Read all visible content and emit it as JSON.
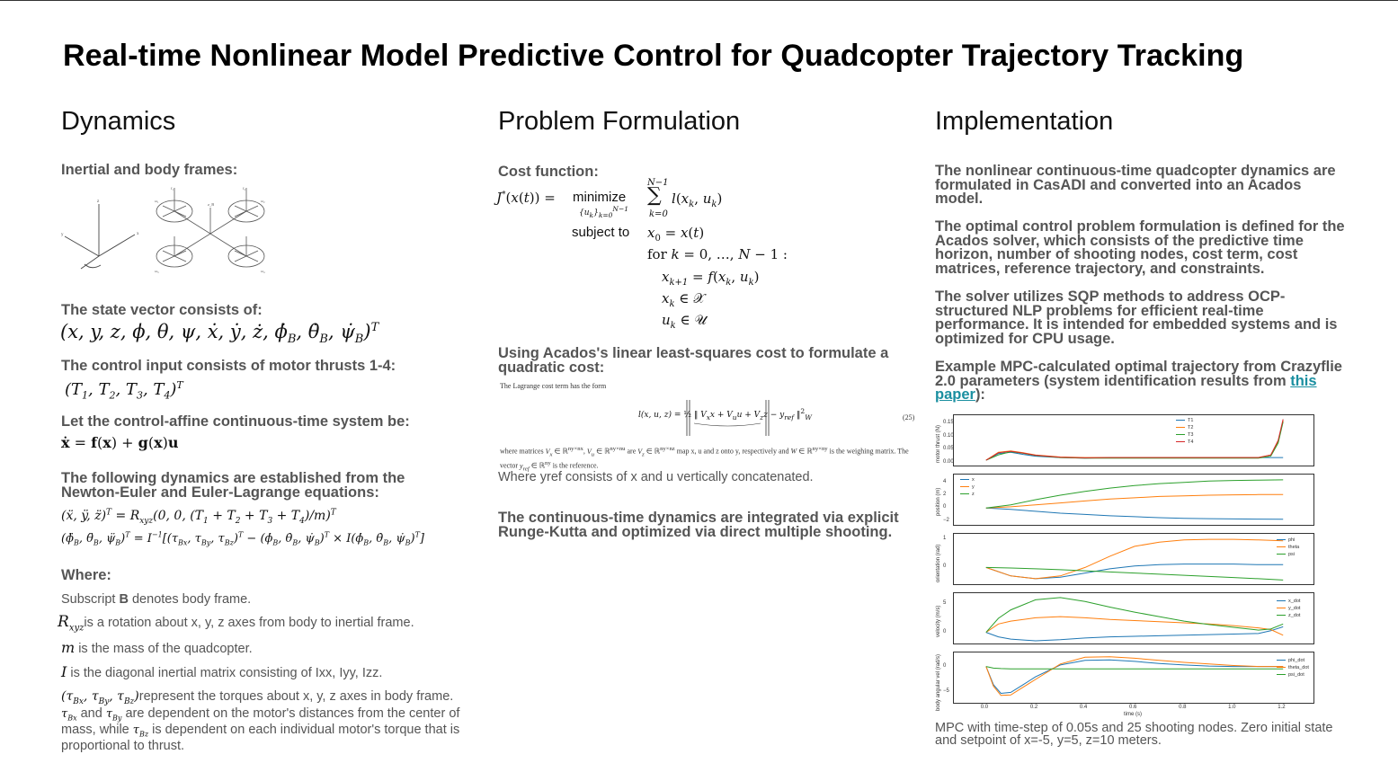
{
  "title": "Real-time Nonlinear Model Predictive Control for Quadcopter Trajectory Tracking",
  "dynamics": {
    "heading": "Dynamics",
    "frames_label": "Inertial and body frames:",
    "state_label": "The state vector consists of:",
    "control_label": "The control input consists of motor thrusts 1-4:",
    "system_label": "Let the control-affine continuous-time system be:",
    "eq_label": "The following dynamics are established from the Newton-Euler and Euler-Lagrange equations:",
    "where_label": "Where:",
    "where_1_pre": "Subscript ",
    "where_1_bold": "B",
    "where_1_post": " denotes body frame.",
    "where_2": "is a rotation about x, y, z axes from body to inertial frame.",
    "where_3": " is the mass of the quadcopter.",
    "where_4": " is the diagonal inertial matrix consisting of Ixx, Iyy, Izz.",
    "where_5a": "represent the torques about x, y, z axes in body frame. ",
    "where_5b": " and ",
    "where_5c": " are dependent on the motor's distances from the center of mass, while ",
    "where_5d": " is dependent on each individual motor's torque that is proportional to thrust."
  },
  "formulation": {
    "heading": "Problem Formulation",
    "cost_label": "Cost function:",
    "minimize": "minimize",
    "subject_to": "subject to",
    "lls_label": "Using Acados's linear least-squares cost to formulate a quadratic cost:",
    "lagrange_text": "The Lagrange cost term has the form",
    "eq_number": "(25)",
    "where_matrices": "where matrices",
    "reference_text": "matrix. The vector",
    "reference_end": "is the reference.",
    "map_text": "map x, u and z onto y, respectively and",
    "weighing_text": "is the weighing",
    "yref_text": "Where yref consists of x and u vertically concatenated.",
    "rk_text": "The continuous-time dynamics are integrated via explicit Runge-Kutta and optimized via direct multiple shooting."
  },
  "implementation": {
    "heading": "Implementation",
    "p1": "The nonlinear continuous-time quadcopter dynamics are formulated in CasADI and converted into an Acados model.",
    "p2": "The optimal control problem formulation is defined for the Acados solver, which consists of the predictive time horizon, number of shooting nodes, cost term, cost matrices, reference trajectory, and constraints.",
    "p3": "The solver utilizes SQP methods to address OCP-structured NLP problems for efficient real-time performance. It is intended for embedded systems and is optimized for CPU usage.",
    "p4_pre": "Example MPC-calculated optimal trajectory from Crazyflie 2.0 parameters (system identification results from ",
    "p4_link": "this paper",
    "p4_post": "):",
    "caption": "MPC with time-step of 0.05s and 25 shooting nodes. Zero initial state and setpoint of x=-5, y=5, z=10 meters.",
    "xlabel": "time (s)",
    "xticks": [
      "0.0",
      "0.2",
      "0.4",
      "0.6",
      "0.8",
      "1.0",
      "1.2"
    ]
  },
  "chart_data": [
    {
      "type": "line",
      "ylabel": "motor thrust (N)",
      "yticks": [
        "0.15",
        "0.10",
        "0.05",
        "0.00"
      ],
      "ylim": [
        0,
        0.17
      ],
      "x": [
        0,
        0.05,
        0.1,
        0.15,
        0.2,
        0.3,
        0.4,
        0.5,
        0.6,
        0.7,
        0.8,
        0.9,
        1.0,
        1.1,
        1.15,
        1.18,
        1.2
      ],
      "series": [
        {
          "name": "T1",
          "color": "#1f77b4",
          "values": [
            0.01,
            0.035,
            0.04,
            0.032,
            0.025,
            0.02,
            0.018,
            0.02,
            0.02,
            0.02,
            0.02,
            0.02,
            0.02,
            0.02,
            0.02,
            0.02,
            0.02
          ]
        },
        {
          "name": "T2",
          "color": "#ff7f0e",
          "values": [
            0.01,
            0.04,
            0.045,
            0.038,
            0.03,
            0.022,
            0.02,
            0.02,
            0.02,
            0.02,
            0.02,
            0.02,
            0.02,
            0.02,
            0.03,
            0.08,
            0.16
          ]
        },
        {
          "name": "T3",
          "color": "#2ca02c",
          "values": [
            0.01,
            0.03,
            0.042,
            0.036,
            0.028,
            0.02,
            0.018,
            0.018,
            0.018,
            0.018,
            0.018,
            0.018,
            0.018,
            0.018,
            0.025,
            0.075,
            0.155
          ]
        },
        {
          "name": "T4",
          "color": "#d62728",
          "values": [
            0.01,
            0.038,
            0.044,
            0.037,
            0.029,
            0.021,
            0.019,
            0.02,
            0.02,
            0.02,
            0.02,
            0.02,
            0.02,
            0.02,
            0.03,
            0.085,
            0.165
          ]
        }
      ]
    },
    {
      "type": "line",
      "ylabel": "position (m)",
      "yticks": [
        "4",
        "2",
        "0",
        "−2"
      ],
      "ylim": [
        -2.2,
        4.8
      ],
      "x": [
        0,
        0.1,
        0.2,
        0.3,
        0.4,
        0.5,
        0.6,
        0.7,
        0.8,
        0.9,
        1.0,
        1.1,
        1.2
      ],
      "series": [
        {
          "name": "x",
          "color": "#1f77b4",
          "values": [
            0,
            -0.2,
            -0.5,
            -0.8,
            -1.0,
            -1.2,
            -1.35,
            -1.5,
            -1.6,
            -1.65,
            -1.7,
            -1.72,
            -1.75
          ]
        },
        {
          "name": "y",
          "color": "#ff7f0e",
          "values": [
            0,
            0.2,
            0.5,
            0.8,
            1.1,
            1.4,
            1.6,
            1.8,
            1.9,
            2.0,
            2.05,
            2.1,
            2.1
          ]
        },
        {
          "name": "z",
          "color": "#2ca02c",
          "values": [
            0,
            0.5,
            1.3,
            2.0,
            2.6,
            3.1,
            3.5,
            3.8,
            4.0,
            4.2,
            4.3,
            4.35,
            4.4
          ]
        }
      ]
    },
    {
      "type": "line",
      "ylabel": "orientation (rad)",
      "yticks": [
        "1",
        "0"
      ],
      "ylim": [
        -0.5,
        1.1
      ],
      "x": [
        0,
        0.1,
        0.2,
        0.3,
        0.4,
        0.5,
        0.6,
        0.7,
        0.8,
        0.9,
        1.0,
        1.1,
        1.2
      ],
      "series": [
        {
          "name": "phi",
          "color": "#1f77b4",
          "values": [
            0,
            -0.3,
            -0.4,
            -0.35,
            -0.2,
            -0.05,
            0.05,
            0.1,
            0.12,
            0.12,
            0.12,
            0.1,
            0.1
          ]
        },
        {
          "name": "theta",
          "color": "#ff7f0e",
          "values": [
            0,
            -0.3,
            -0.4,
            -0.3,
            0.0,
            0.4,
            0.75,
            0.9,
            0.98,
            1.0,
            1.0,
            0.98,
            0.95
          ]
        },
        {
          "name": "psi",
          "color": "#2ca02c",
          "values": [
            0,
            -0.02,
            -0.05,
            -0.08,
            -0.12,
            -0.16,
            -0.2,
            -0.24,
            -0.28,
            -0.32,
            -0.36,
            -0.4,
            -0.45
          ]
        }
      ]
    },
    {
      "type": "line",
      "ylabel": "velocity (m/s)",
      "yticks": [
        "5",
        "0"
      ],
      "ylim": [
        -1.5,
        6.5
      ],
      "x": [
        0,
        0.05,
        0.1,
        0.2,
        0.3,
        0.4,
        0.5,
        0.6,
        0.7,
        0.8,
        0.9,
        1.0,
        1.1,
        1.15,
        1.2
      ],
      "series": [
        {
          "name": "x_dot",
          "color": "#1f77b4",
          "values": [
            0,
            -0.8,
            -1.2,
            -1.5,
            -1.3,
            -1.0,
            -0.8,
            -0.7,
            -0.6,
            -0.5,
            -0.4,
            -0.3,
            -0.2,
            0.3,
            1.0
          ]
        },
        {
          "name": "y_dot",
          "color": "#ff7f0e",
          "values": [
            0,
            1.5,
            2.0,
            2.6,
            2.8,
            2.6,
            2.3,
            2.1,
            1.9,
            1.7,
            1.5,
            1.2,
            0.8,
            0.5,
            -0.5
          ]
        },
        {
          "name": "z_dot",
          "color": "#2ca02c",
          "values": [
            0,
            2.5,
            4.0,
            5.8,
            6.2,
            5.5,
            4.5,
            3.6,
            2.8,
            2.0,
            1.4,
            0.9,
            0.4,
            0.6,
            1.5
          ]
        }
      ]
    },
    {
      "type": "line",
      "ylabel": "body angular vel (rad/s)",
      "yticks": [
        "0",
        "−5"
      ],
      "ylim": [
        -6.5,
        2.2
      ],
      "x": [
        0,
        0.03,
        0.06,
        0.1,
        0.15,
        0.2,
        0.3,
        0.4,
        0.5,
        0.6,
        0.7,
        0.8,
        0.9,
        1.0,
        1.1,
        1.2
      ],
      "series": [
        {
          "name": "phi_dot",
          "color": "#1f77b4",
          "values": [
            0,
            -3.5,
            -5.2,
            -5.0,
            -3.5,
            -2.0,
            0.3,
            1.2,
            1.3,
            1.0,
            0.6,
            0.3,
            0.1,
            0.0,
            0.0,
            0.0
          ]
        },
        {
          "name": "theta_dot",
          "color": "#ff7f0e",
          "values": [
            0,
            -3.8,
            -5.6,
            -5.5,
            -4.0,
            -2.5,
            0.5,
            1.8,
            1.9,
            1.6,
            1.2,
            0.8,
            0.5,
            0.2,
            0.0,
            0.0
          ]
        },
        {
          "name": "psi_dot",
          "color": "#2ca02c",
          "values": [
            0,
            -0.3,
            -0.4,
            -0.45,
            -0.45,
            -0.45,
            -0.45,
            -0.45,
            -0.45,
            -0.45,
            -0.45,
            -0.45,
            -0.45,
            -0.45,
            -0.45,
            -0.45
          ]
        }
      ]
    }
  ]
}
